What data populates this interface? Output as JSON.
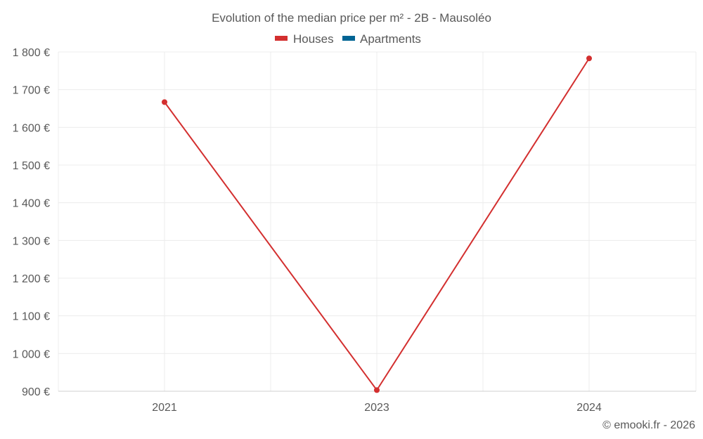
{
  "chart_data": {
    "type": "line",
    "title": "Evolution of the median price per m² - 2B - Mausoléo",
    "categories": [
      "2021",
      "2023",
      "2024"
    ],
    "series": [
      {
        "name": "Houses",
        "color": "#d32f2f",
        "values": [
          1667,
          903,
          1783
        ]
      },
      {
        "name": "Apartments",
        "color": "#006494",
        "values": [
          null,
          null,
          null
        ]
      }
    ],
    "y_ticks": [
      900,
      1000,
      1100,
      1200,
      1300,
      1400,
      1500,
      1600,
      1700,
      1800
    ],
    "y_tick_labels": [
      "900 €",
      "1 000 €",
      "1 100 €",
      "1 200 €",
      "1 300 €",
      "1 400 €",
      "1 500 €",
      "1 600 €",
      "1 700 €",
      "1 800 €"
    ],
    "ylim": [
      900,
      1800
    ],
    "grid": true,
    "legend_position": "top-center"
  },
  "credit": "© emooki.fr - 2026"
}
